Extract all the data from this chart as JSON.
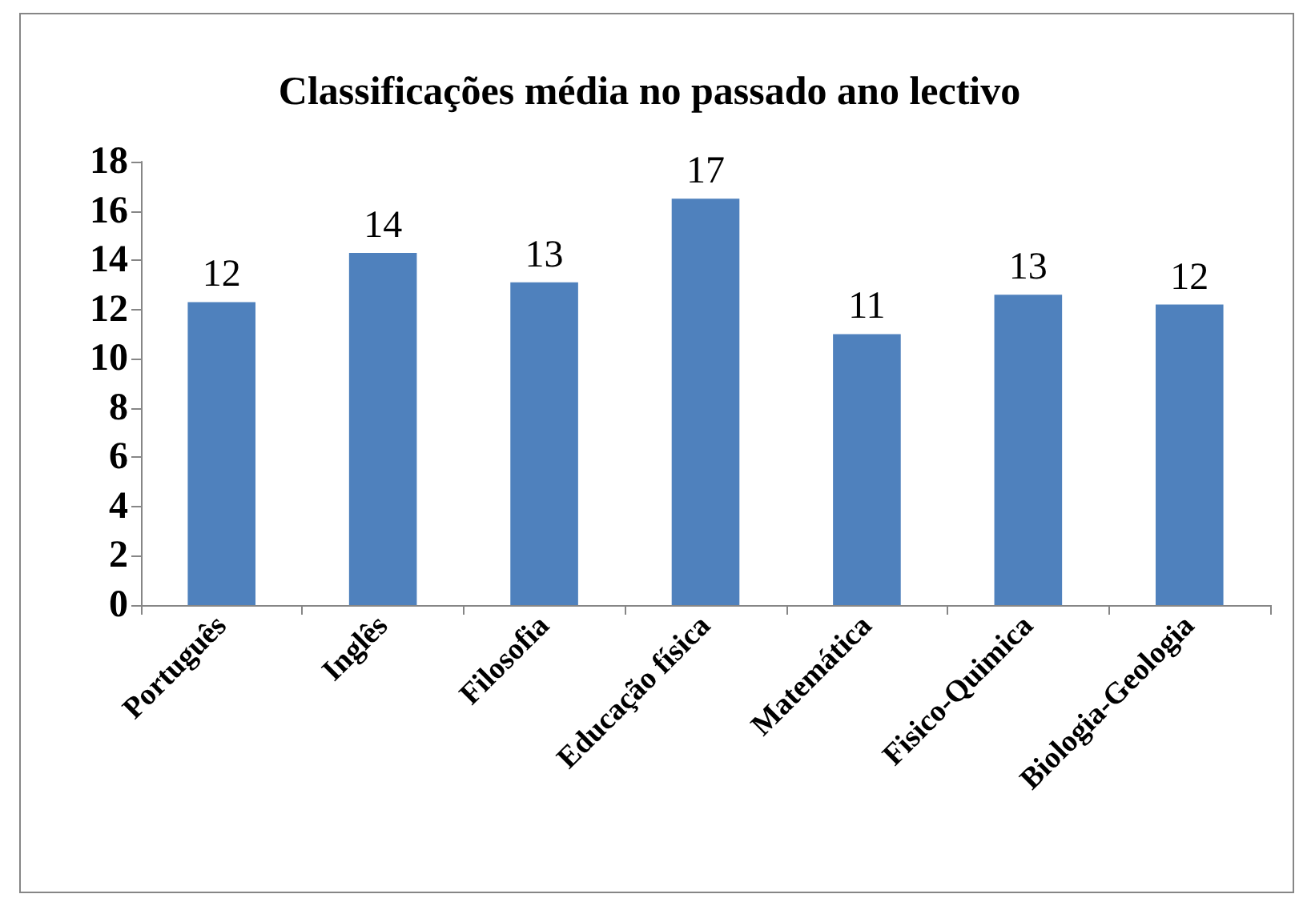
{
  "chart_data": {
    "type": "bar",
    "title": "Classificações média no passado ano lectivo",
    "categories": [
      "Português",
      "Inglês",
      "Filosofia",
      "Educação física",
      "Matemática",
      "Fisico-Quimica",
      "Biologia-Geologia"
    ],
    "values": [
      12.3,
      14.3,
      13.1,
      16.5,
      11.0,
      12.6,
      12.2
    ],
    "value_labels": [
      "12",
      "14",
      "13",
      "17",
      "11",
      "13",
      "12"
    ],
    "color": "#4f81bd",
    "ylim": [
      0,
      18
    ],
    "yticks": [
      0,
      2,
      4,
      6,
      8,
      10,
      12,
      14,
      16,
      18
    ]
  }
}
